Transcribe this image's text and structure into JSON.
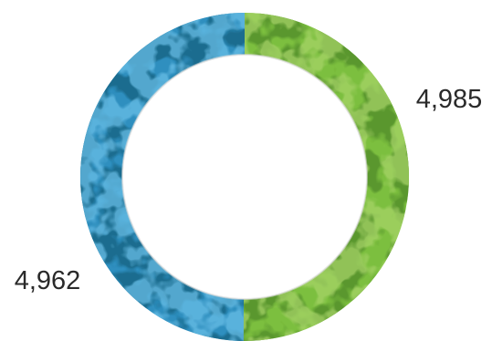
{
  "chart_data": {
    "type": "pie",
    "style": "donut",
    "title": "",
    "series": [
      {
        "value": 4985,
        "label": "4,985",
        "color": "#7cbf3f",
        "color_dark": "#4f8a2a",
        "color_light": "#a8d46a"
      },
      {
        "value": 4962,
        "label": "4,962",
        "color": "#2f8fbf",
        "color_dark": "#15617f",
        "color_light": "#6cc0e8"
      }
    ],
    "legend": "none"
  }
}
